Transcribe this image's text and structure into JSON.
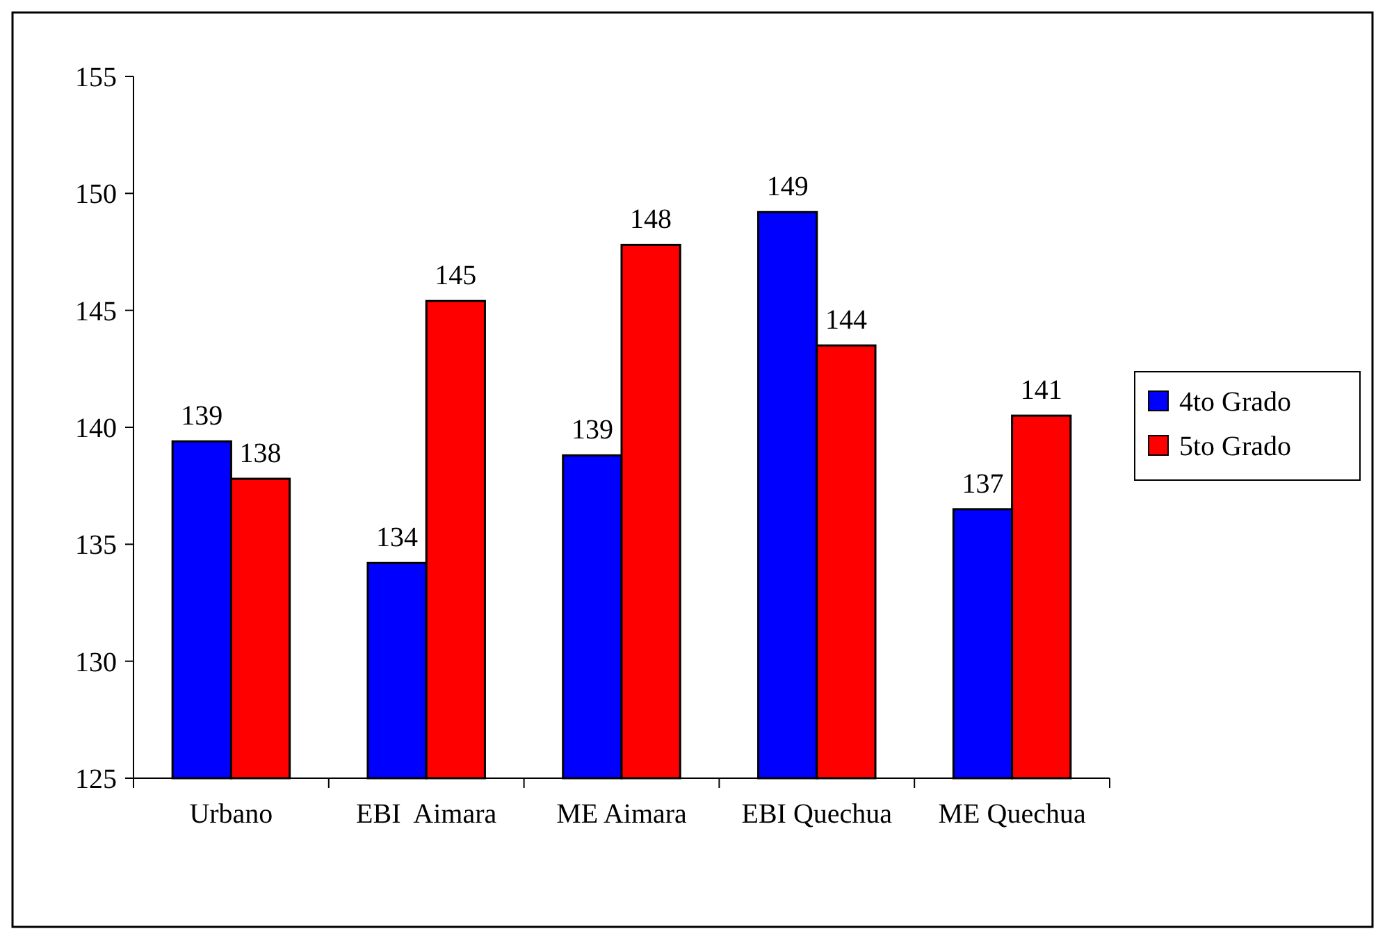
{
  "chart_data": {
    "type": "bar",
    "categories": [
      "Urbano",
      "EBI  Aimara",
      "ME Aimara",
      "EBI Quechua",
      "ME Quechua"
    ],
    "series": [
      {
        "name": "4to Grado",
        "color": "#0000ff",
        "values": [
          139.4,
          134.2,
          138.8,
          149.2,
          136.5
        ],
        "value_labels": [
          "139",
          "134",
          "139",
          "149",
          "137"
        ]
      },
      {
        "name": "5to Grado",
        "color": "#ff0000",
        "values": [
          137.8,
          145.4,
          147.8,
          143.5,
          140.5
        ],
        "value_labels": [
          "138",
          "145",
          "148",
          "144",
          "141"
        ]
      }
    ],
    "ylim": [
      125,
      155
    ],
    "yticks": [
      125,
      130,
      135,
      140,
      145,
      150,
      155
    ],
    "grid": false,
    "legend": "right"
  }
}
